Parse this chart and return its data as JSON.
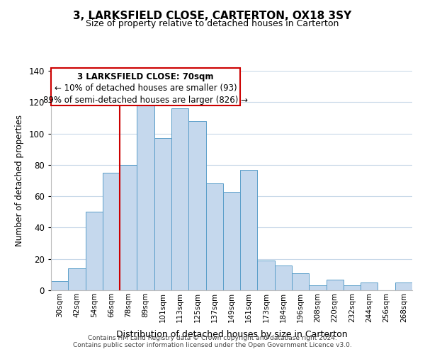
{
  "title": "3, LARKSFIELD CLOSE, CARTERTON, OX18 3SY",
  "subtitle": "Size of property relative to detached houses in Carterton",
  "xlabel": "Distribution of detached houses by size in Carterton",
  "ylabel": "Number of detached properties",
  "bar_labels": [
    "30sqm",
    "42sqm",
    "54sqm",
    "66sqm",
    "78sqm",
    "89sqm",
    "101sqm",
    "113sqm",
    "125sqm",
    "137sqm",
    "149sqm",
    "161sqm",
    "173sqm",
    "184sqm",
    "196sqm",
    "208sqm",
    "220sqm",
    "232sqm",
    "244sqm",
    "256sqm",
    "268sqm"
  ],
  "bar_values": [
    6,
    14,
    50,
    75,
    80,
    118,
    97,
    116,
    108,
    68,
    63,
    77,
    19,
    16,
    11,
    3,
    7,
    3,
    5,
    0,
    5
  ],
  "bar_color": "#c5d8ed",
  "bar_edge_color": "#5a9ec9",
  "ylim": [
    0,
    140
  ],
  "yticks": [
    0,
    20,
    40,
    60,
    80,
    100,
    120,
    140
  ],
  "vline_x": 3.5,
  "vline_color": "#cc0000",
  "annotation_title": "3 LARKSFIELD CLOSE: 70sqm",
  "annotation_line1": "← 10% of detached houses are smaller (93)",
  "annotation_line2": "89% of semi-detached houses are larger (826) →",
  "footer_line1": "Contains HM Land Registry data © Crown copyright and database right 2024.",
  "footer_line2": "Contains public sector information licensed under the Open Government Licence v3.0.",
  "background_color": "#ffffff",
  "grid_color": "#c8d8e8"
}
